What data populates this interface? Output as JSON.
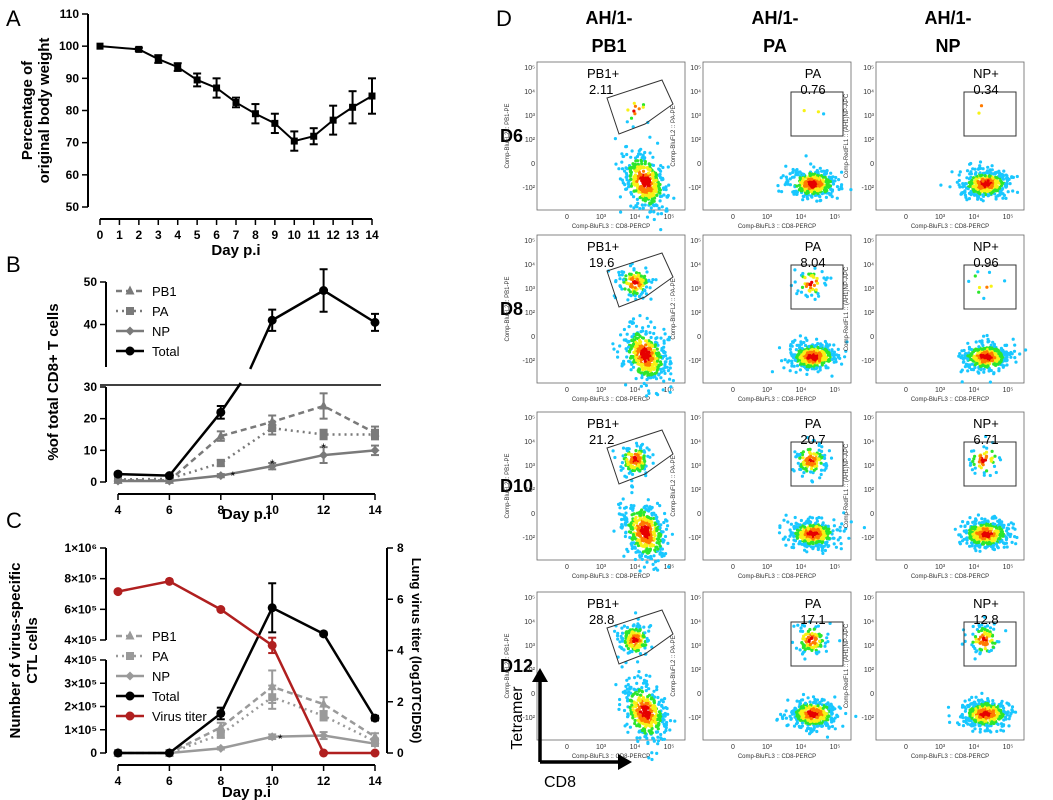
{
  "panels": {
    "A": "A",
    "B": "B",
    "C": "C",
    "D": "D"
  },
  "chart_data": [
    {
      "panel": "A",
      "type": "line",
      "xlabel": "Day p.i",
      "ylabel": "Percentage of original body weight",
      "x": [
        0,
        1,
        2,
        3,
        4,
        5,
        6,
        7,
        8,
        9,
        10,
        11,
        12,
        13,
        14
      ],
      "xticks": [
        "0",
        "1",
        "2",
        "3",
        "4",
        "5",
        "6",
        "7",
        "8",
        "9",
        "10",
        "11",
        "12",
        "13",
        "14"
      ],
      "ylim": [
        50,
        110
      ],
      "yticks": [
        "50",
        "60",
        "70",
        "80",
        "90",
        "100",
        "110"
      ],
      "series": [
        {
          "color": "#000000",
          "x": [
            0,
            2,
            3,
            4,
            5,
            6,
            7,
            8,
            9,
            10,
            11,
            12,
            13,
            14
          ],
          "values": [
            100,
            99,
            96,
            93.5,
            89.5,
            87,
            82.5,
            79,
            76,
            70.5,
            72,
            77,
            81,
            84.5
          ],
          "err": [
            0,
            0.5,
            1.2,
            1.2,
            2,
            3,
            1.5,
            3,
            3,
            3,
            2.5,
            4.5,
            5,
            5.5
          ]
        }
      ]
    },
    {
      "panel": "B",
      "type": "line",
      "xlabel": "Day p.i",
      "ylabel": "%of total CD8+ T cells",
      "x": [
        4,
        6,
        8,
        10,
        12,
        14
      ],
      "xticks": [
        "4",
        "6",
        "8",
        "10",
        "12",
        "14"
      ],
      "yticks": [
        "0",
        "10",
        "20",
        "30",
        "40",
        "50"
      ],
      "ylim_lower": [
        0,
        30
      ],
      "ylim_upper": [
        30,
        50
      ],
      "significance_days": [
        8,
        10,
        12
      ],
      "significance_mark": "*",
      "series": [
        {
          "name": "PB1",
          "color": "#7a7a7a",
          "marker": "triangle",
          "dash": "dashed",
          "values": [
            0.5,
            0.5,
            14.5,
            19,
            24,
            15.5
          ],
          "err": [
            0.3,
            0.3,
            1.5,
            2,
            4,
            2
          ]
        },
        {
          "name": "PA",
          "color": "#7a7a7a",
          "marker": "square",
          "dash": "dotted",
          "values": [
            0.8,
            1,
            6,
            17,
            15,
            15
          ],
          "err": [
            0.3,
            0.3,
            1,
            2,
            1.5,
            1.5
          ]
        },
        {
          "name": "NP",
          "color": "#7a7a7a",
          "marker": "diamond",
          "dash": "solid",
          "values": [
            0.3,
            0.3,
            2,
            5,
            8.5,
            10
          ],
          "err": [
            0.2,
            0.2,
            0.5,
            1,
            2.5,
            1.5
          ]
        },
        {
          "name": "Total",
          "color": "#000000",
          "marker": "circle",
          "dash": "solid",
          "values": [
            2.5,
            2,
            22,
            41,
            48,
            40.5
          ],
          "err": [
            0.5,
            0.5,
            2,
            2.5,
            5,
            2
          ]
        }
      ]
    },
    {
      "panel": "C",
      "type": "line",
      "xlabel": "Day p.i",
      "ylabel": "Number of virus-specific CTL cells",
      "y2label": "Lung virus titer (log10TCID50)",
      "x": [
        4,
        6,
        8,
        10,
        12,
        14
      ],
      "xticks": [
        "4",
        "6",
        "8",
        "10",
        "12",
        "14"
      ],
      "yticks_lower": [
        "0",
        "1×10⁵",
        "2×10⁵",
        "3×10⁵",
        "4×10⁵"
      ],
      "yticks_upper": [
        "4×10⁵",
        "6×10⁵",
        "8×10⁵",
        "1×10⁶"
      ],
      "y2ticks": [
        "0",
        "2",
        "4",
        "6",
        "8"
      ],
      "ylim_lower": [
        0,
        400000
      ],
      "ylim_upper": [
        400000,
        1000000
      ],
      "y2lim": [
        0,
        8
      ],
      "significance_days": [
        10
      ],
      "significance_mark": "*",
      "series": [
        {
          "name": "PB1",
          "color": "#9a9a9a",
          "marker": "triangle",
          "dash": "dashed",
          "axis": "left",
          "values": [
            0,
            0,
            110000,
            285000,
            210000,
            70000
          ],
          "err": [
            0,
            0,
            20000,
            70000,
            30000,
            15000
          ]
        },
        {
          "name": "PA",
          "color": "#9a9a9a",
          "marker": "square",
          "dash": "dotted",
          "axis": "left",
          "values": [
            0,
            0,
            80000,
            240000,
            160000,
            50000
          ],
          "err": [
            0,
            0,
            15000,
            50000,
            20000,
            10000
          ]
        },
        {
          "name": "NP",
          "color": "#9a9a9a",
          "marker": "diamond",
          "dash": "solid",
          "axis": "left",
          "values": [
            0,
            0,
            20000,
            70000,
            75000,
            40000
          ],
          "err": [
            0,
            0,
            5000,
            10000,
            15000,
            10000
          ]
        },
        {
          "name": "Total",
          "color": "#000000",
          "marker": "circle",
          "dash": "solid",
          "axis": "left",
          "values": [
            0,
            0,
            170000,
            610000,
            440000,
            150000
          ],
          "err": [
            0,
            0,
            25000,
            160000,
            10000,
            10000
          ]
        },
        {
          "name": "Virus titer",
          "color": "#b01f1f",
          "marker": "circle",
          "dash": "solid",
          "axis": "right",
          "values": [
            6.3,
            6.7,
            5.6,
            4.2,
            0,
            0
          ],
          "err": [
            0,
            0,
            0,
            0.3,
            0,
            0
          ]
        }
      ]
    }
  ],
  "flow": {
    "columns": [
      "AH/1-\nPB1",
      "AH/1-\nPA",
      "AH/1-\nNP"
    ],
    "rows": [
      "D6",
      "D8",
      "D10",
      "D12"
    ],
    "gates": [
      [
        {
          "label": "PB1+",
          "value": "2.11"
        },
        {
          "label": "PA",
          "value": "0.76"
        },
        {
          "label": "NP+",
          "value": "0.34"
        }
      ],
      [
        {
          "label": "PB1+",
          "value": "19.6"
        },
        {
          "label": "PA",
          "value": "8.04"
        },
        {
          "label": "NP+",
          "value": "0.96"
        }
      ],
      [
        {
          "label": "PB1+",
          "value": "21.2"
        },
        {
          "label": "PA",
          "value": "20.7"
        },
        {
          "label": "NP+",
          "value": "6.71"
        }
      ],
      [
        {
          "label": "PB1+",
          "value": "28.8"
        },
        {
          "label": "PA",
          "value": "17.1"
        },
        {
          "label": "NP+",
          "value": "12.8"
        }
      ]
    ],
    "xaxis_labels": [
      "Comp-BluFL3 :: CD8-PERCP",
      "Comp-BluFL3 :: CD8-PERCP",
      "Comp-BluFL3 :: CD8-PERCP"
    ],
    "yaxis_labels": [
      "Comp-BluFL2 :: PB1-PE",
      "Comp-BluFL2 :: PA-PE",
      "Comp-RedFL1 :: (AH1)NP-APC"
    ],
    "tick_labels": [
      "10⁵",
      "10⁴",
      "10³",
      "10²",
      "0",
      "-10²"
    ],
    "xtick_labels": [
      "0",
      "10³",
      "10⁴",
      "10⁵"
    ],
    "y_caption": "Tetramer",
    "x_caption": "CD8"
  }
}
